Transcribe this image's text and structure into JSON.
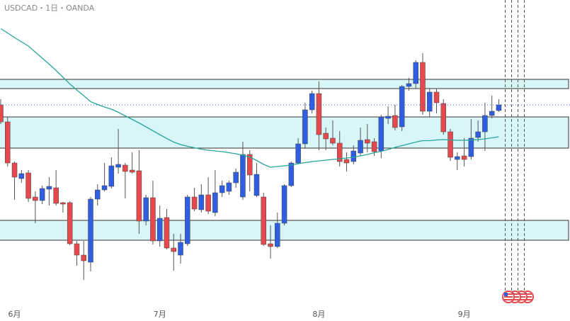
{
  "chart_data": {
    "type": "candlestick",
    "title": "USDCAD・1日・OANDA",
    "categories": [
      null,
      null,
      "6月",
      null,
      null,
      null,
      null,
      null,
      null,
      null,
      null,
      null,
      null,
      null,
      null,
      null,
      null,
      null,
      null,
      null,
      null,
      null,
      null,
      "7月",
      null,
      null,
      null,
      null,
      null,
      null,
      null,
      null,
      null,
      null,
      null,
      null,
      null,
      null,
      null,
      null,
      null,
      null,
      null,
      null,
      null,
      null,
      "8月",
      null,
      null,
      null,
      null,
      null,
      null,
      null,
      null,
      null,
      null,
      null,
      null,
      null,
      null,
      null,
      null,
      null,
      null,
      null,
      null,
      "9月",
      null,
      null,
      null,
      null,
      null
    ],
    "open": [
      1.3604,
      1.3556,
      1.344,
      1.3396,
      1.3412,
      1.3344,
      1.3334,
      1.3366,
      1.337,
      1.3328,
      1.3328,
      1.3212,
      1.318,
      1.316,
      1.3338,
      1.3364,
      1.3374,
      1.3428,
      1.3434,
      1.342,
      1.3418,
      1.3276,
      1.3342,
      1.322,
      1.3286,
      1.32,
      1.318,
      1.3212,
      1.3344,
      1.3308,
      1.335,
      1.33,
      1.3356,
      1.336,
      1.3384,
      1.3344,
      1.3464,
      1.3348,
      1.3344,
      1.3212,
      1.3204,
      1.327,
      1.3376,
      1.344,
      1.3494,
      1.359,
      1.3636,
      1.3524,
      1.351,
      1.3496,
      1.345,
      1.3444,
      1.3468,
      1.3506,
      1.35,
      1.3474,
      1.3566,
      1.3574,
      1.3542,
      1.3656,
      1.3664,
      1.3724,
      1.3586,
      1.364,
      1.3608,
      1.3528,
      1.345,
      1.346,
      1.3458,
      1.3512,
      1.3528,
      1.3574,
      1.3588
    ],
    "high": [
      1.362,
      1.357,
      1.3444,
      1.342,
      1.342,
      1.336,
      1.3376,
      1.34,
      1.342,
      1.333,
      1.3332,
      1.322,
      1.322,
      1.3344,
      1.338,
      1.344,
      1.3456,
      1.3536,
      1.344,
      1.347,
      1.3476,
      1.335,
      1.339,
      1.332,
      1.331,
      1.324,
      1.324,
      1.335,
      1.337,
      1.338,
      1.34,
      1.342,
      1.339,
      1.339,
      1.3424,
      1.35,
      1.3476,
      1.344,
      1.3356,
      1.3264,
      1.33,
      1.338,
      1.3444,
      1.351,
      1.361,
      1.3644,
      1.367,
      1.354,
      1.356,
      1.353,
      1.347,
      1.349,
      1.354,
      1.355,
      1.351,
      1.3576,
      1.36,
      1.3604,
      1.366,
      1.368,
      1.373,
      1.375,
      1.365,
      1.365,
      1.362,
      1.3536,
      1.347,
      1.351,
      1.3564,
      1.356,
      1.361,
      1.363,
      1.362
    ],
    "low": [
      1.355,
      1.343,
      1.3336,
      1.3384,
      1.333,
      1.327,
      1.3324,
      1.332,
      1.332,
      1.33,
      1.3208,
      1.315,
      1.311,
      1.3134,
      1.332,
      1.336,
      1.3368,
      1.341,
      1.334,
      1.341,
      1.324,
      1.3264,
      1.321,
      1.3204,
      1.3196,
      1.3136,
      1.3156,
      1.3206,
      1.3304,
      1.33,
      1.3296,
      1.329,
      1.3344,
      1.335,
      1.337,
      1.3336,
      1.336,
      1.3344,
      1.3206,
      1.317,
      1.32,
      1.3264,
      1.3372,
      1.3436,
      1.348,
      1.358,
      1.3476,
      1.3476,
      1.349,
      1.343,
      1.3416,
      1.3436,
      1.346,
      1.347,
      1.346,
      1.3454,
      1.355,
      1.3532,
      1.353,
      1.3644,
      1.365,
      1.3576,
      1.357,
      1.358,
      1.352,
      1.3446,
      1.342,
      1.343,
      1.345,
      1.35,
      1.3474,
      1.3566,
      1.3584
    ],
    "close": [
      1.3556,
      1.344,
      1.34,
      1.341,
      1.334,
      1.3334,
      1.3368,
      1.3374,
      1.3326,
      1.3324,
      1.3212,
      1.318,
      1.3164,
      1.3338,
      1.3364,
      1.3376,
      1.3432,
      1.3436,
      1.3416,
      1.3414,
      1.3276,
      1.3342,
      1.322,
      1.3284,
      1.32,
      1.319,
      1.3216,
      1.3344,
      1.331,
      1.335,
      1.3304,
      1.3356,
      1.3376,
      1.3384,
      1.3414,
      1.3464,
      1.3406,
      1.3408,
      1.321,
      1.3204,
      1.327,
      1.3376,
      1.344,
      1.3494,
      1.359,
      1.3636,
      1.352,
      1.3508,
      1.3496,
      1.3444,
      1.344,
      1.3474,
      1.3504,
      1.3496,
      1.3472,
      1.357,
      1.3572,
      1.354,
      1.3656,
      1.3664,
      1.3724,
      1.3586,
      1.364,
      1.361,
      1.3528,
      1.3456,
      1.3458,
      1.345,
      1.351,
      1.3528,
      1.3574,
      1.3586,
      1.3604
    ],
    "up_color": "#2f5fe0",
    "down_color": "#e5484d",
    "moving_average": {
      "color": "#26a69a",
      "values": [
        1.3819,
        1.3807,
        1.3794,
        1.3782,
        1.377,
        1.3753,
        1.3736,
        1.3719,
        1.3701,
        1.3682,
        1.3663,
        1.3646,
        1.363,
        1.3613,
        1.3605,
        1.3598,
        1.3592,
        1.3583,
        1.3573,
        1.3563,
        1.3553,
        1.3542,
        1.3531,
        1.352,
        1.3509,
        1.3499,
        1.3492,
        1.3487,
        1.3483,
        1.3479,
        1.3476,
        1.3474,
        1.3472,
        1.3469,
        1.3466,
        1.3462,
        1.3457,
        1.3447,
        1.3436,
        1.3428,
        1.343,
        1.3432,
        1.3434,
        1.3438,
        1.3441,
        1.3444,
        1.3446,
        1.3448,
        1.345,
        1.3452,
        1.3454,
        1.3456,
        1.346,
        1.3464,
        1.3469,
        1.3473,
        1.3478,
        1.3484,
        1.3489,
        1.3494,
        1.3499,
        1.3503,
        1.3503,
        1.3505,
        1.3506,
        1.3505,
        1.3504,
        1.3504,
        1.3505,
        1.3506,
        1.3508,
        1.3511,
        1.3514
      ]
    },
    "zones": [
      {
        "from": 1.365,
        "to": 1.3676
      },
      {
        "from": 1.3482,
        "to": 1.357
      },
      {
        "from": 1.3222,
        "to": 1.3278
      }
    ],
    "zone_color": "#d8f5f8",
    "price_line": 1.3604,
    "ylim": [
      1.2994,
      1.39
    ]
  }
}
